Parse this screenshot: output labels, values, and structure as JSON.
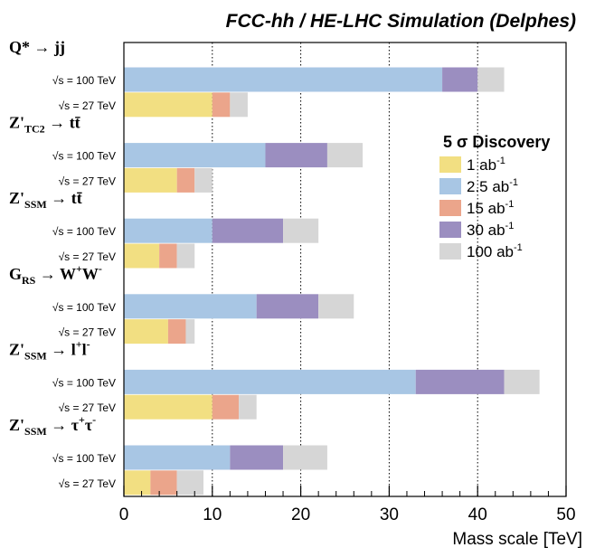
{
  "chart_data": {
    "type": "bar",
    "orientation": "horizontal",
    "stacked": true,
    "title": "FCC-hh / HE-LHC Simulation (Delphes)",
    "xlabel": "Mass scale [TeV]",
    "xlim": [
      0,
      50
    ],
    "xticks": [
      0,
      10,
      20,
      30,
      40,
      50
    ],
    "legend": {
      "title": "5 σ Discovery",
      "position": "right",
      "entries": [
        {
          "base": "1 ab",
          "sup": "-1",
          "color": "#f2df82"
        },
        {
          "base": "2.5 ab",
          "sup": "-1",
          "color": "#a8c6e4"
        },
        {
          "base": "15 ab",
          "sup": "-1",
          "color": "#eba58b"
        },
        {
          "base": "30 ab",
          "sup": "-1",
          "color": "#9b8ec0"
        },
        {
          "base": "100 ab",
          "sup": "-1",
          "color": "#d6d6d6"
        }
      ]
    },
    "series_names": [
      "1 ab-1",
      "2.5 ab-1",
      "15 ab-1",
      "30 ab-1",
      "100 ab-1"
    ],
    "groups": [
      {
        "name": "Q* → jj",
        "rows": [
          {
            "label": "√s = 100 TeV",
            "segments": [
              {
                "series": 1,
                "from": 0,
                "to": 36
              },
              {
                "series": 3,
                "from": 36,
                "to": 40
              },
              {
                "series": 4,
                "from": 40,
                "to": 43
              }
            ]
          },
          {
            "label": "√s = 27 TeV",
            "segments": [
              {
                "series": 0,
                "from": 0,
                "to": 10
              },
              {
                "series": 2,
                "from": 10,
                "to": 12
              },
              {
                "series": 4,
                "from": 12,
                "to": 14
              }
            ]
          }
        ]
      },
      {
        "name": "Z'TC2 → tt̄",
        "rows": [
          {
            "label": "√s = 100 TeV",
            "segments": [
              {
                "series": 1,
                "from": 0,
                "to": 16
              },
              {
                "series": 3,
                "from": 16,
                "to": 23
              },
              {
                "series": 4,
                "from": 23,
                "to": 27
              }
            ]
          },
          {
            "label": "√s = 27 TeV",
            "segments": [
              {
                "series": 0,
                "from": 0,
                "to": 6
              },
              {
                "series": 2,
                "from": 6,
                "to": 8
              },
              {
                "series": 4,
                "from": 8,
                "to": 10
              }
            ]
          }
        ]
      },
      {
        "name": "Z'SSM → tt̄",
        "rows": [
          {
            "label": "√s = 100 TeV",
            "segments": [
              {
                "series": 1,
                "from": 0,
                "to": 10
              },
              {
                "series": 3,
                "from": 10,
                "to": 18
              },
              {
                "series": 4,
                "from": 18,
                "to": 22
              }
            ]
          },
          {
            "label": "√s = 27 TeV",
            "segments": [
              {
                "series": 0,
                "from": 0,
                "to": 4
              },
              {
                "series": 2,
                "from": 4,
                "to": 6
              },
              {
                "series": 4,
                "from": 6,
                "to": 8
              }
            ]
          }
        ]
      },
      {
        "name": "GRS → W+W-",
        "rows": [
          {
            "label": "√s = 100 TeV",
            "segments": [
              {
                "series": 1,
                "from": 0,
                "to": 15
              },
              {
                "series": 3,
                "from": 15,
                "to": 22
              },
              {
                "series": 4,
                "from": 22,
                "to": 26
              }
            ]
          },
          {
            "label": "√s = 27 TeV",
            "segments": [
              {
                "series": 0,
                "from": 0,
                "to": 5
              },
              {
                "series": 2,
                "from": 5,
                "to": 7
              },
              {
                "series": 4,
                "from": 7,
                "to": 8
              }
            ]
          }
        ]
      },
      {
        "name": "Z'SSM → l+l-",
        "rows": [
          {
            "label": "√s = 100 TeV",
            "segments": [
              {
                "series": 1,
                "from": 0,
                "to": 33
              },
              {
                "series": 3,
                "from": 33,
                "to": 43
              },
              {
                "series": 4,
                "from": 43,
                "to": 47
              }
            ]
          },
          {
            "label": "√s = 27 TeV",
            "segments": [
              {
                "series": 0,
                "from": 0,
                "to": 10
              },
              {
                "series": 2,
                "from": 10,
                "to": 13
              },
              {
                "series": 4,
                "from": 13,
                "to": 15
              }
            ]
          }
        ]
      },
      {
        "name": "Z'SSM → τ+τ-",
        "rows": [
          {
            "label": "√s = 100 TeV",
            "segments": [
              {
                "series": 1,
                "from": 0,
                "to": 12
              },
              {
                "series": 3,
                "from": 12,
                "to": 18
              },
              {
                "series": 4,
                "from": 18,
                "to": 23
              }
            ]
          },
          {
            "label": "√s = 27 TeV",
            "segments": [
              {
                "series": 0,
                "from": 0,
                "to": 3
              },
              {
                "series": 2,
                "from": 3,
                "to": 6
              },
              {
                "series": 4,
                "from": 6,
                "to": 9
              }
            ]
          }
        ]
      }
    ]
  }
}
